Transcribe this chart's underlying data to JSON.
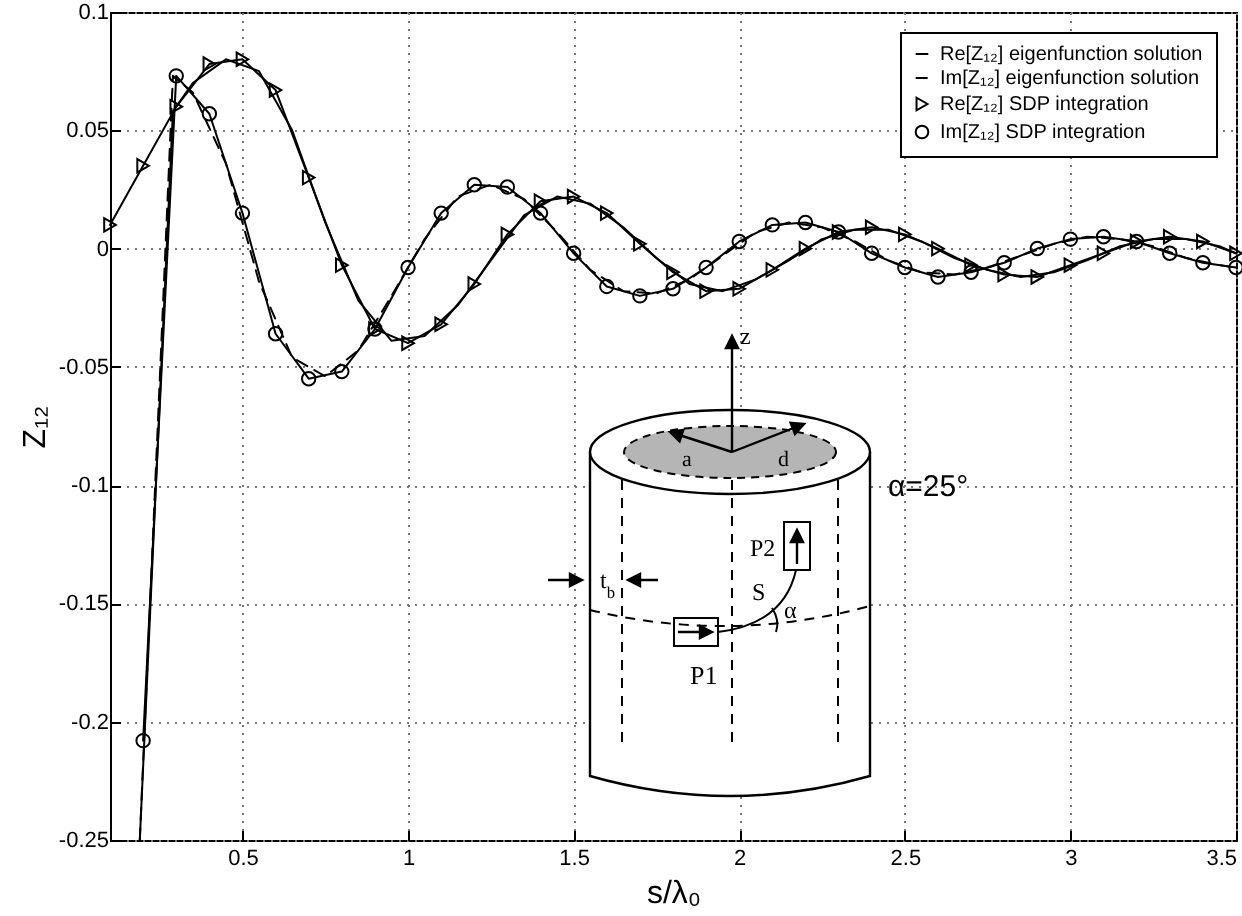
{
  "chart_data": {
    "type": "line",
    "xlabel": "s/λ₀",
    "ylabel": "Z₁₂",
    "xlim": [
      0.1,
      3.5
    ],
    "ylim": [
      -0.25,
      0.1
    ],
    "xticks": [
      0.5,
      1,
      1.5,
      2,
      2.5,
      3,
      3.5
    ],
    "yticks": [
      -0.25,
      -0.2,
      -0.15,
      -0.1,
      -0.05,
      0,
      0.05,
      0.1
    ],
    "grid": true,
    "legend": "top right",
    "annotations": [
      "z",
      "a",
      "d",
      "P2",
      "S",
      "α",
      "t$_{b}$",
      "P1",
      "α=25°"
    ],
    "series": [
      {
        "name": "Re[Z₁₂] eigenfunction solution",
        "color": "#000000",
        "line_style": "solid",
        "marker": "none",
        "x": [
          0.19,
          0.29,
          0.35,
          0.45,
          0.55,
          0.65,
          0.75,
          0.85,
          0.95,
          1.05,
          1.15,
          1.25,
          1.35,
          1.45,
          1.55,
          1.65,
          1.75,
          1.85,
          1.95,
          2.05,
          2.15,
          2.25,
          2.35,
          2.45,
          2.55,
          2.65,
          2.75,
          2.85,
          2.95,
          3.05,
          3.15,
          3.25,
          3.35,
          3.45,
          3.5
        ],
        "values": [
          -0.25,
          0.058,
          0.07,
          0.08,
          0.075,
          0.05,
          0.011,
          -0.022,
          -0.039,
          -0.037,
          -0.024,
          -0.005,
          0.014,
          0.022,
          0.019,
          0.009,
          -0.004,
          -0.015,
          -0.018,
          -0.013,
          -0.005,
          0.004,
          0.008,
          0.008,
          0.003,
          -0.004,
          -0.009,
          -0.012,
          -0.01,
          -0.005,
          0.001,
          0.004,
          0.004,
          0.001,
          -0.002
        ]
      },
      {
        "name": "Im[Z₁₂] eigenfunction solution",
        "color": "#000000",
        "line_style": "dashed",
        "marker": "none",
        "x": [
          0.19,
          0.29,
          0.35,
          0.45,
          0.55,
          0.65,
          0.75,
          0.85,
          0.95,
          1.05,
          1.15,
          1.25,
          1.35,
          1.45,
          1.55,
          1.65,
          1.75,
          1.85,
          1.95,
          2.05,
          2.15,
          2.25,
          2.35,
          2.45,
          2.55,
          2.65,
          2.75,
          2.85,
          2.95,
          3.05,
          3.15,
          3.25,
          3.35,
          3.45,
          3.5
        ],
        "values": [
          -0.25,
          0.073,
          0.066,
          0.036,
          -0.014,
          -0.046,
          -0.054,
          -0.043,
          -0.02,
          0.004,
          0.022,
          0.027,
          0.021,
          0.007,
          -0.009,
          -0.018,
          -0.019,
          -0.013,
          -0.003,
          0.007,
          0.011,
          0.009,
          0.003,
          -0.005,
          -0.01,
          -0.011,
          -0.008,
          -0.003,
          0.002,
          0.005,
          0.004,
          0.001,
          -0.004,
          -0.007,
          -0.008
        ]
      },
      {
        "name": "Re[Z₁₂] SDP integration",
        "color": "#000000",
        "line_style": "solid",
        "marker": "triangle",
        "x": [
          0.1,
          0.2,
          0.3,
          0.4,
          0.5,
          0.6,
          0.7,
          0.8,
          0.9,
          1.0,
          1.1,
          1.2,
          1.3,
          1.4,
          1.5,
          1.6,
          1.7,
          1.8,
          1.9,
          2.0,
          2.1,
          2.2,
          2.3,
          2.4,
          2.5,
          2.6,
          2.7,
          2.8,
          2.9,
          3.0,
          3.1,
          3.2,
          3.3,
          3.4,
          3.5
        ],
        "values": [
          0.01,
          0.035,
          0.06,
          0.078,
          0.08,
          0.067,
          0.03,
          -0.007,
          -0.034,
          -0.04,
          -0.032,
          -0.015,
          0.006,
          0.02,
          0.022,
          0.015,
          0.002,
          -0.01,
          -0.018,
          -0.017,
          -0.009,
          0,
          0.007,
          0.009,
          0.006,
          0,
          -0.007,
          -0.011,
          -0.012,
          -0.007,
          -0.002,
          0.003,
          0.005,
          0.003,
          -0.002
        ]
      },
      {
        "name": "Im[Z₁₂] SDP integration",
        "color": "#000000",
        "line_style": "solid",
        "marker": "circle",
        "x": [
          0.2,
          0.3,
          0.4,
          0.5,
          0.6,
          0.7,
          0.8,
          0.9,
          1.0,
          1.1,
          1.2,
          1.3,
          1.4,
          1.5,
          1.6,
          1.7,
          1.8,
          1.9,
          2.0,
          2.1,
          2.2,
          2.3,
          2.4,
          2.5,
          2.6,
          2.7,
          2.8,
          2.9,
          3.0,
          3.1,
          3.2,
          3.3,
          3.4,
          3.5
        ],
        "values": [
          -0.208,
          0.073,
          0.057,
          0.015,
          -0.036,
          -0.055,
          -0.052,
          -0.034,
          -0.008,
          0.015,
          0.027,
          0.026,
          0.015,
          -0.002,
          -0.016,
          -0.02,
          -0.017,
          -0.008,
          0.003,
          0.01,
          0.011,
          0.007,
          -0.002,
          -0.008,
          -0.012,
          -0.01,
          -0.006,
          0,
          0.004,
          0.005,
          0.003,
          -0.002,
          -0.006,
          -0.008
        ]
      }
    ]
  }
}
